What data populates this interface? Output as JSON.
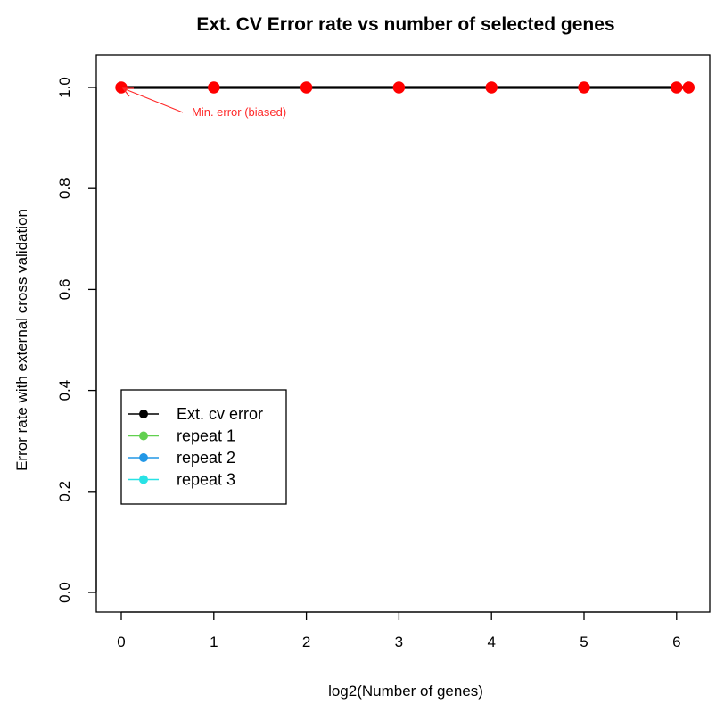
{
  "chart_data": {
    "type": "line",
    "title": "Ext. CV Error rate vs number of selected genes",
    "xlabel": "log2(Number of genes)",
    "ylabel": "Error rate with external cross validation",
    "xlim": [
      0,
      6.13
    ],
    "ylim": [
      0,
      1
    ],
    "x_ticks": [
      0,
      1,
      2,
      3,
      4,
      5,
      6
    ],
    "y_ticks": [
      0.0,
      0.2,
      0.4,
      0.6,
      0.8,
      1.0
    ],
    "x_tick_labels": [
      "0",
      "1",
      "2",
      "3",
      "4",
      "5",
      "6"
    ],
    "y_tick_labels": [
      "0.0",
      "0.2",
      "0.4",
      "0.6",
      "0.8",
      "1.0"
    ],
    "grid": false,
    "legend_position": "left-lower",
    "series": [
      {
        "name": "Ext. cv error",
        "color": "#000000",
        "marker_color": "#ff0000",
        "x": [
          0,
          1,
          2,
          3,
          4,
          5,
          6,
          6.13
        ],
        "y": [
          1,
          1,
          1,
          1,
          1,
          1,
          1,
          1
        ]
      }
    ],
    "legend": [
      {
        "label": "Ext. cv error",
        "color": "#000000"
      },
      {
        "label": "repeat 1",
        "color": "#61d04f"
      },
      {
        "label": "repeat 2",
        "color": "#2297e6"
      },
      {
        "label": "repeat 3",
        "color": "#28e2e5"
      }
    ],
    "annotation": {
      "text": "Min. error (biased)",
      "color": "#ff2a2a",
      "point_x": 0,
      "point_y": 1
    }
  }
}
